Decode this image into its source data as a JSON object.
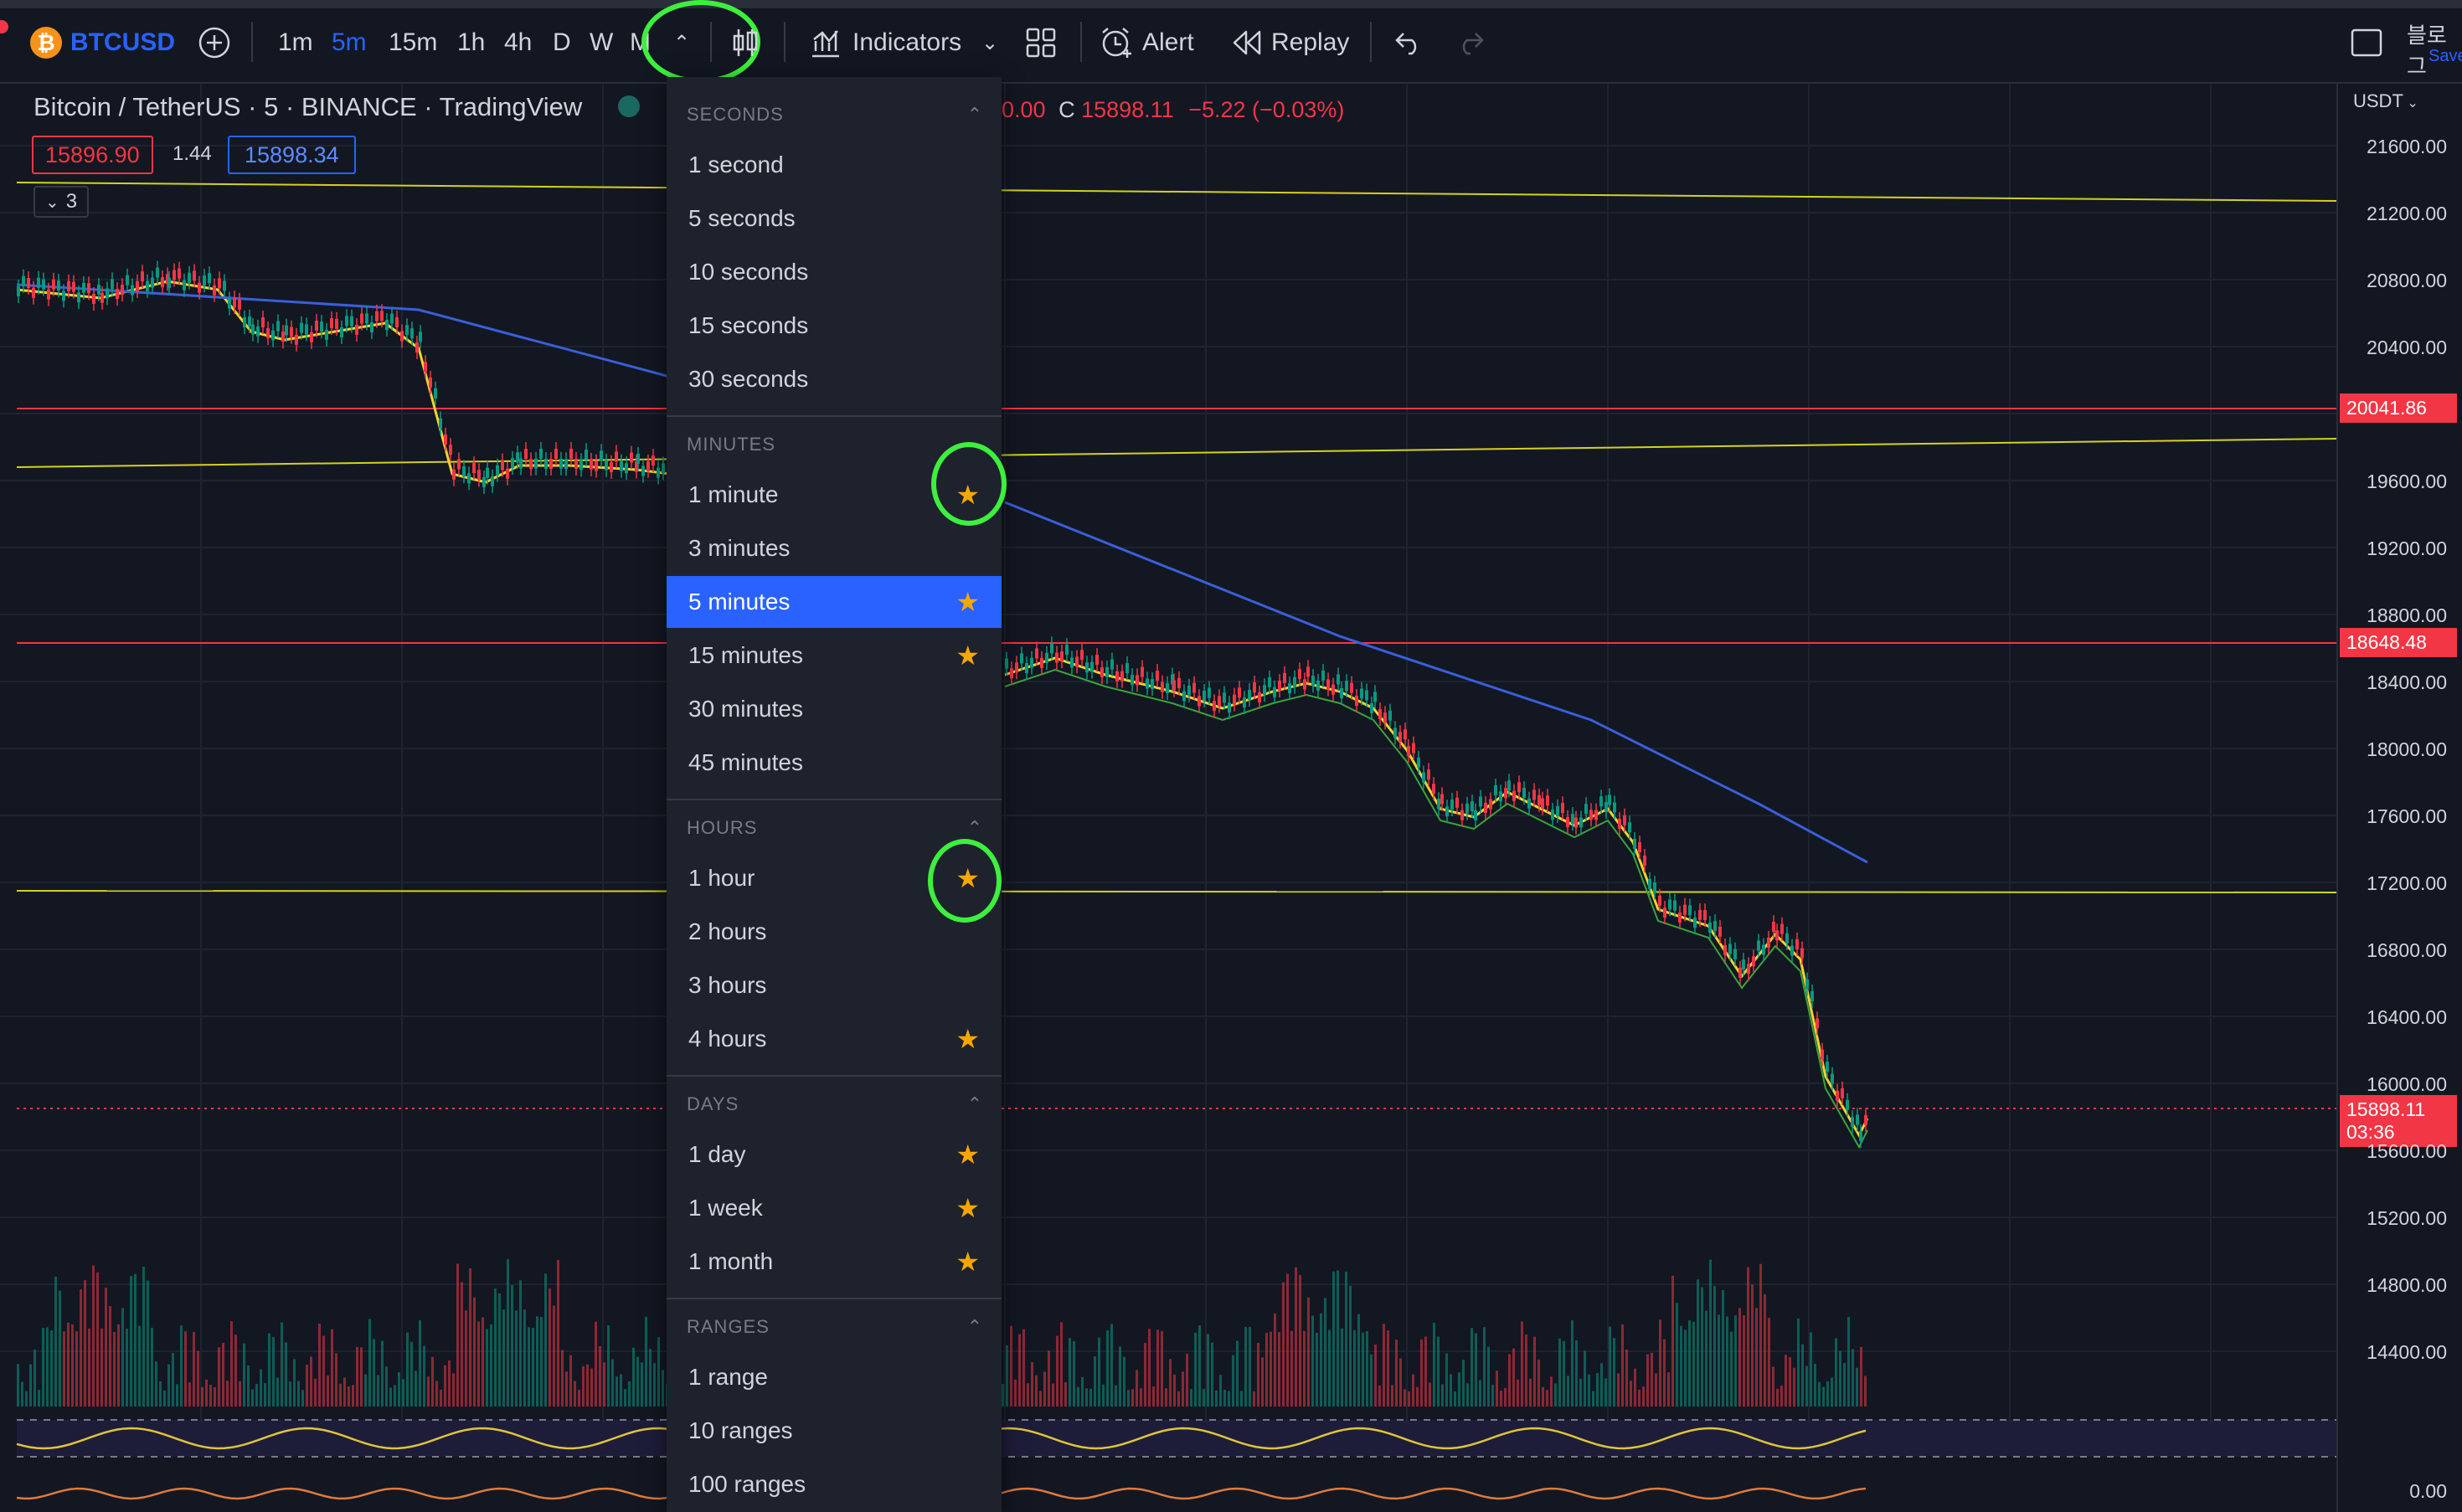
{
  "toolbar": {
    "symbol": "BTCUSD",
    "intervals": [
      "1m",
      "5m",
      "15m",
      "1h",
      "4h",
      "D",
      "W",
      "M"
    ],
    "active_interval": "5m",
    "indicators_label": "Indicators",
    "alert_label": "Alert",
    "replay_label": "Replay",
    "right_label_top": "블로그",
    "right_label_bottom": "Save"
  },
  "legend": {
    "title": "Bitcoin / TetherUS · 5 · BINANCE · TradingView",
    "ohlc_prefix": "0.00",
    "close_label": "C",
    "close_value": "15898.11",
    "change": "−5.22 (−0.03%)",
    "bid": "15896.90",
    "spread": "1.44",
    "ask": "15898.34",
    "indicators_count": "3"
  },
  "price_axis": {
    "currency": "USDT",
    "ticks": [
      "21600.00",
      "21200.00",
      "20800.00",
      "20400.00",
      "19600.00",
      "19200.00",
      "18800.00",
      "18400.00",
      "18000.00",
      "17600.00",
      "17200.00",
      "16800.00",
      "16400.00",
      "16000.00",
      "15600.00",
      "15200.00",
      "14800.00",
      "14400.00",
      "0.00"
    ],
    "tag_red_1": "20041.86",
    "tag_red_2": "18648.48",
    "tag_current": "15898.11",
    "tag_countdown": "03:36"
  },
  "dropdown": {
    "seconds": {
      "header": "SECONDS",
      "items": [
        "1 second",
        "5 seconds",
        "10 seconds",
        "15 seconds",
        "30 seconds"
      ]
    },
    "minutes": {
      "header": "MINUTES",
      "items": [
        "1 minute",
        "3 minutes",
        "5 minutes",
        "15 minutes",
        "30 minutes",
        "45 minutes"
      ]
    },
    "hours": {
      "header": "HOURS",
      "items": [
        "1 hour",
        "2 hours",
        "3 hours",
        "4 hours"
      ]
    },
    "days": {
      "header": "DAYS",
      "items": [
        "1 day",
        "1 week",
        "1 month"
      ]
    },
    "ranges": {
      "header": "RANGES",
      "items": [
        "1 range",
        "10 ranges",
        "100 ranges"
      ]
    },
    "selected": "5 minutes",
    "favorites": [
      "1 minute",
      "5 minutes",
      "15 minutes",
      "1 hour",
      "4 hours",
      "1 day",
      "1 week",
      "1 month"
    ]
  },
  "colors": {
    "background": "#131722",
    "accent": "#2962ff",
    "down": "#f23645",
    "up": "#089981",
    "star": "#f7a600",
    "highlight": "#3df03d"
  }
}
